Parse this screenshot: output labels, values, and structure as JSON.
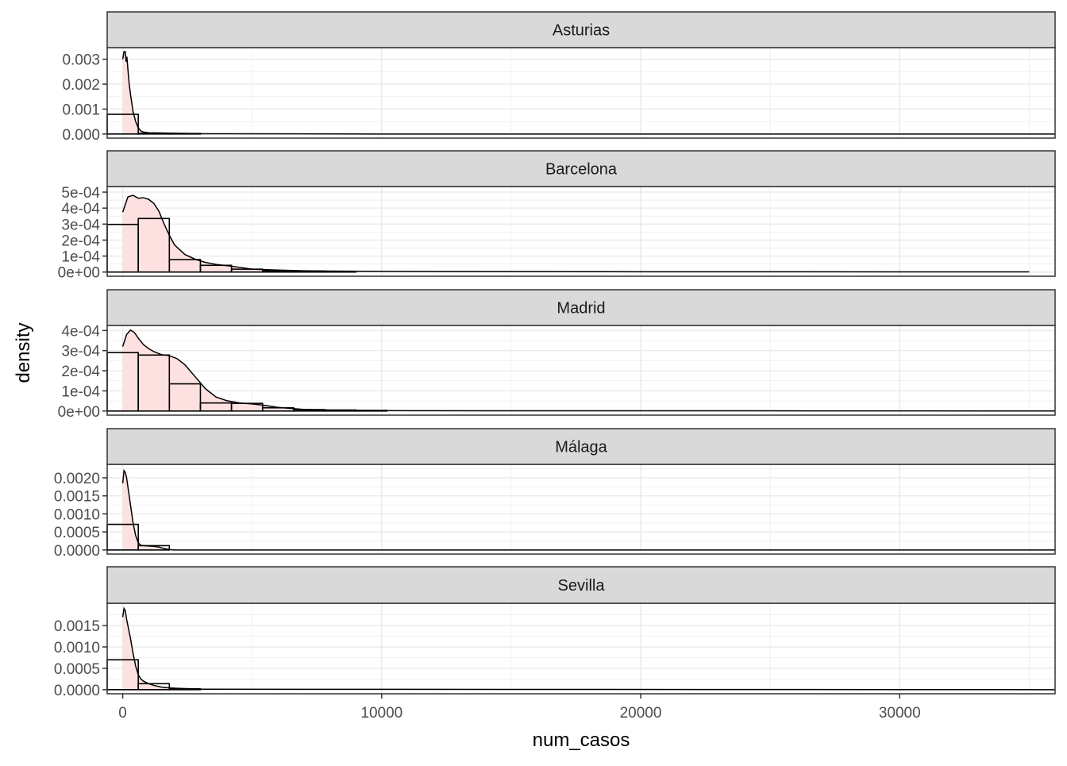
{
  "chart_data": {
    "type": "histogram",
    "facet_layout": "single column, free y scales",
    "xlabel": "num_casos",
    "ylabel": "density",
    "xlim": [
      -600,
      36000
    ],
    "x_ticks": [
      0,
      10000,
      20000,
      30000
    ],
    "x_tick_labels": [
      "0",
      "10000",
      "20000",
      "30000"
    ],
    "histogram_bin_width": 1200,
    "colors": {
      "density_fill": "#fde0e0",
      "strip_fill": "#d9d9d9",
      "line": "#000000",
      "grid": "#ebebeb",
      "axis_text": "#4d4d4d"
    },
    "panels": [
      {
        "name": "Asturias",
        "ylim": [
          -0.000165,
          0.003465
        ],
        "y_ticks": [
          0,
          0.001,
          0.002,
          0.003
        ],
        "y_tick_labels": [
          "0.000",
          "0.001",
          "0.002",
          "0.003"
        ],
        "bins": [
          {
            "x0": -600,
            "x1": 600,
            "y": 0.00079
          },
          {
            "x0": 600,
            "x1": 1800,
            "y": 3e-05
          },
          {
            "x0": 1800,
            "x1": 3000,
            "y": 2e-05
          }
        ],
        "density": {
          "x": [
            0,
            50,
            100,
            130,
            160,
            200,
            250,
            300,
            400,
            500,
            600,
            700,
            800,
            1000,
            1500,
            2000,
            3000,
            10000,
            36000
          ],
          "y": [
            0.003,
            0.0033,
            0.0033,
            0.0029,
            0.0031,
            0.0026,
            0.002,
            0.0016,
            0.0009,
            0.0005,
            0.00025,
            0.00012,
            8e-05,
            5e-05,
            4e-05,
            3e-05,
            1e-05,
            0,
            0
          ]
        }
      },
      {
        "name": "Barcelona",
        "ylim": [
          -2.62e-05,
          0.000535
        ],
        "y_ticks": [
          0,
          0.0001,
          0.0002,
          0.0003,
          0.0004,
          0.0005
        ],
        "y_tick_labels": [
          "0e+00",
          "1e-04",
          "2e-04",
          "3e-04",
          "4e-04",
          "5e-04"
        ],
        "bins": [
          {
            "x0": -600,
            "x1": 600,
            "y": 0.000298
          },
          {
            "x0": 600,
            "x1": 1800,
            "y": 0.000335
          },
          {
            "x0": 1800,
            "x1": 3000,
            "y": 7.8e-05
          },
          {
            "x0": 3000,
            "x1": 4200,
            "y": 4.2e-05
          },
          {
            "x0": 4200,
            "x1": 5400,
            "y": 1.8e-05
          },
          {
            "x0": 5400,
            "x1": 6600,
            "y": 8e-06
          },
          {
            "x0": 6600,
            "x1": 7800,
            "y": 6e-06
          },
          {
            "x0": 7800,
            "x1": 9000,
            "y": 4e-06
          }
        ],
        "density": {
          "x": [
            0,
            200,
            400,
            600,
            800,
            1000,
            1200,
            1400,
            1600,
            1800,
            2000,
            2400,
            2800,
            3200,
            3600,
            4000,
            4500,
            5000,
            6000,
            7000,
            8000,
            10000,
            14000,
            20000,
            26000,
            30000,
            35000
          ],
          "y": [
            0.000375,
            0.00047,
            0.00048,
            0.000462,
            0.000465,
            0.000455,
            0.00043,
            0.00038,
            0.0003,
            0.00023,
            0.00017,
            0.00011,
            8e-05,
            6e-05,
            4.8e-05,
            4e-05,
            3e-05,
            1.8e-05,
            1.2e-05,
            8e-06,
            6e-06,
            4e-06,
            3e-06,
            2e-06,
            2e-06,
            1e-06,
            1e-06
          ]
        }
      },
      {
        "name": "Madrid",
        "ylim": [
          -2.05e-05,
          0.000425
        ],
        "y_ticks": [
          0,
          0.0001,
          0.0002,
          0.0003,
          0.0004
        ],
        "y_tick_labels": [
          "0e+00",
          "1e-04",
          "2e-04",
          "3e-04",
          "4e-04"
        ],
        "bins": [
          {
            "x0": -600,
            "x1": 600,
            "y": 0.00029
          },
          {
            "x0": 600,
            "x1": 1800,
            "y": 0.000278
          },
          {
            "x0": 1800,
            "x1": 3000,
            "y": 0.000135
          },
          {
            "x0": 3000,
            "x1": 4200,
            "y": 4e-05
          },
          {
            "x0": 4200,
            "x1": 5400,
            "y": 3.8e-05
          },
          {
            "x0": 5400,
            "x1": 6600,
            "y": 1.6e-05
          },
          {
            "x0": 6600,
            "x1": 7800,
            "y": 7e-06
          },
          {
            "x0": 7800,
            "x1": 9000,
            "y": 5e-06
          },
          {
            "x0": 9000,
            "x1": 10200,
            "y": 3e-06
          }
        ],
        "density": {
          "x": [
            0,
            150,
            300,
            450,
            600,
            800,
            1000,
            1200,
            1500,
            1800,
            2100,
            2400,
            2800,
            3200,
            3600,
            4000,
            4500,
            5000,
            5500,
            6000,
            7000,
            8000,
            10000,
            14000,
            20000,
            24500,
            36000
          ],
          "y": [
            0.00032,
            0.00038,
            0.000402,
            0.00039,
            0.000362,
            0.00033,
            0.00031,
            0.000295,
            0.00028,
            0.000275,
            0.00026,
            0.00023,
            0.00017,
            0.00011,
            7e-05,
            5.2e-05,
            4e-05,
            3.5e-05,
            2.8e-05,
            1.8e-05,
            8e-06,
            4e-06,
            2e-06,
            1e-06,
            1e-06,
            1e-06,
            0
          ]
        }
      },
      {
        "name": "Málaga",
        "ylim": [
          -0.000113,
          0.002373
        ],
        "y_ticks": [
          0,
          0.0005,
          0.001,
          0.0015,
          0.002
        ],
        "y_tick_labels": [
          "0.0000",
          "0.0005",
          "0.0010",
          "0.0015",
          "0.0020"
        ],
        "bins": [
          {
            "x0": -600,
            "x1": 600,
            "y": 0.00071
          },
          {
            "x0": 600,
            "x1": 1800,
            "y": 0.00012
          }
        ],
        "density": {
          "x": [
            0,
            50,
            100,
            150,
            200,
            250,
            300,
            350,
            400,
            500,
            600,
            700,
            800,
            1000,
            1200,
            1400,
            1600,
            1800,
            2000,
            36000
          ],
          "y": [
            0.00185,
            0.0022,
            0.00215,
            0.002,
            0.00175,
            0.0015,
            0.00125,
            0.001,
            0.00075,
            0.0004,
            0.0002,
            0.00013,
            0.00012,
            0.00011,
            0.0001,
            8e-05,
            4e-05,
            1e-05,
            0,
            0
          ]
        }
      },
      {
        "name": "Sevilla",
        "ylim": [
          -9.63e-05,
          0.002022
        ],
        "y_ticks": [
          0,
          0.0005,
          0.001,
          0.0015
        ],
        "y_tick_labels": [
          "0.0000",
          "0.0005",
          "0.0010",
          "0.0015"
        ],
        "bins": [
          {
            "x0": -600,
            "x1": 600,
            "y": 0.0007
          },
          {
            "x0": 600,
            "x1": 1800,
            "y": 0.00014
          },
          {
            "x0": 1800,
            "x1": 3000,
            "y": 2e-05
          }
        ],
        "density": {
          "x": [
            0,
            50,
            100,
            150,
            200,
            300,
            400,
            500,
            600,
            700,
            800,
            1000,
            1200,
            1500,
            1800,
            2200,
            2600,
            3000,
            36000
          ],
          "y": [
            0.0017,
            0.0019,
            0.00185,
            0.00165,
            0.0015,
            0.0012,
            0.00085,
            0.00055,
            0.00035,
            0.00025,
            0.0002,
            0.00014,
            0.0001,
            6e-05,
            4e-05,
            3e-05,
            2e-05,
            1e-05,
            0
          ]
        }
      }
    ]
  }
}
